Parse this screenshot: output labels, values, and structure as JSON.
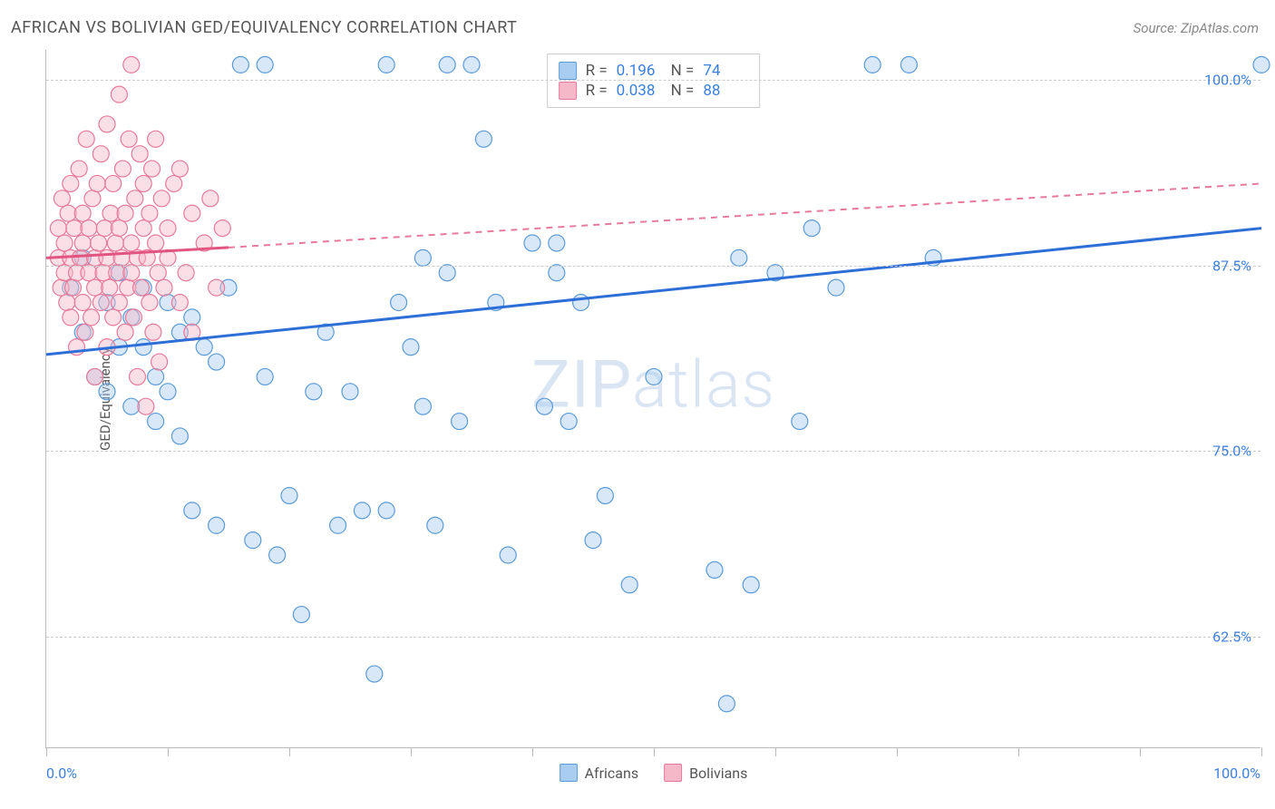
{
  "title": "AFRICAN VS BOLIVIAN GED/EQUIVALENCY CORRELATION CHART",
  "source": "Source: ZipAtlas.com",
  "ylabel": "GED/Equivalency",
  "watermark_zip": "ZIP",
  "watermark_atlas": "atlas",
  "chart": {
    "type": "scatter",
    "xlim": [
      0,
      100
    ],
    "ylim": [
      55,
      102
    ],
    "background_color": "#ffffff",
    "grid_color": "#cccccc",
    "grid_dash": "4,4",
    "border_color": "#bbbbbb",
    "ytick_values": [
      62.5,
      75.0,
      87.5,
      100.0
    ],
    "ytick_labels": [
      "62.5%",
      "75.0%",
      "87.5%",
      "100.0%"
    ],
    "ytick_color": "#3b7fdd",
    "ytick_fontsize": 16,
    "xtick_positions": [
      0,
      10,
      20,
      30,
      40,
      50,
      60,
      70,
      80,
      90,
      100
    ],
    "xaxis_left_label": "0.0%",
    "xaxis_right_label": "100.0%",
    "marker_radius": 9,
    "marker_opacity": 0.45,
    "line_width_solid": 3,
    "line_width_dash": 2,
    "series": [
      {
        "name": "Africans",
        "fill_color": "#a8cdf0",
        "stroke_color": "#5a9bd8",
        "R": "0.196",
        "N": "74",
        "trend_solid": {
          "x1": 0,
          "y1": 81.5,
          "x2": 100,
          "y2": 90.0,
          "color": "#2d6fd6"
        },
        "points": [
          [
            2,
            86
          ],
          [
            3,
            83
          ],
          [
            3,
            88
          ],
          [
            4,
            80
          ],
          [
            5,
            85
          ],
          [
            5,
            79
          ],
          [
            6,
            87
          ],
          [
            6,
            82
          ],
          [
            7,
            84
          ],
          [
            7,
            78
          ],
          [
            8,
            86
          ],
          [
            8,
            82
          ],
          [
            9,
            80
          ],
          [
            9,
            77
          ],
          [
            10,
            85
          ],
          [
            10,
            79
          ],
          [
            11,
            83
          ],
          [
            11,
            76
          ],
          [
            12,
            84
          ],
          [
            12,
            71
          ],
          [
            13,
            82
          ],
          [
            14,
            81
          ],
          [
            14,
            70
          ],
          [
            15,
            86
          ],
          [
            16,
            101
          ],
          [
            17,
            69
          ],
          [
            18,
            101
          ],
          [
            18,
            80
          ],
          [
            19,
            68
          ],
          [
            20,
            72
          ],
          [
            21,
            64
          ],
          [
            22,
            79
          ],
          [
            23,
            83
          ],
          [
            24,
            70
          ],
          [
            25,
            79
          ],
          [
            26,
            71
          ],
          [
            27,
            60
          ],
          [
            28,
            101
          ],
          [
            28,
            71
          ],
          [
            29,
            85
          ],
          [
            30,
            82
          ],
          [
            31,
            88
          ],
          [
            31,
            78
          ],
          [
            32,
            70
          ],
          [
            33,
            101
          ],
          [
            33,
            87
          ],
          [
            34,
            77
          ],
          [
            35,
            101
          ],
          [
            36,
            96
          ],
          [
            37,
            85
          ],
          [
            38,
            68
          ],
          [
            40,
            89
          ],
          [
            41,
            78
          ],
          [
            42,
            87
          ],
          [
            42,
            89
          ],
          [
            43,
            77
          ],
          [
            44,
            85
          ],
          [
            45,
            69
          ],
          [
            46,
            72
          ],
          [
            48,
            66
          ],
          [
            50,
            80
          ],
          [
            53,
            101
          ],
          [
            55,
            67
          ],
          [
            56,
            58
          ],
          [
            57,
            88
          ],
          [
            58,
            66
          ],
          [
            60,
            87
          ],
          [
            62,
            77
          ],
          [
            63,
            90
          ],
          [
            65,
            86
          ],
          [
            68,
            101
          ],
          [
            71,
            101
          ],
          [
            73,
            88
          ],
          [
            100,
            101
          ]
        ]
      },
      {
        "name": "Bolivians",
        "fill_color": "#f5b8c8",
        "stroke_color": "#e77a9a",
        "R": "0.038",
        "N": "88",
        "trend_solid": {
          "x1": 0,
          "y1": 88.0,
          "x2": 15,
          "y2": 88.7,
          "color": "#e25580"
        },
        "trend_dash": {
          "x1": 15,
          "y1": 88.7,
          "x2": 100,
          "y2": 93.0,
          "color": "#e77a9a"
        },
        "points": [
          [
            1,
            88
          ],
          [
            1,
            90
          ],
          [
            1.2,
            86
          ],
          [
            1.3,
            92
          ],
          [
            1.5,
            87
          ],
          [
            1.5,
            89
          ],
          [
            1.7,
            85
          ],
          [
            1.8,
            91
          ],
          [
            2,
            88
          ],
          [
            2,
            84
          ],
          [
            2,
            93
          ],
          [
            2.2,
            86
          ],
          [
            2.3,
            90
          ],
          [
            2.5,
            87
          ],
          [
            2.5,
            82
          ],
          [
            2.7,
            94
          ],
          [
            2.8,
            88
          ],
          [
            3,
            85
          ],
          [
            3,
            91
          ],
          [
            3,
            89
          ],
          [
            3.2,
            83
          ],
          [
            3.3,
            96
          ],
          [
            3.5,
            87
          ],
          [
            3.5,
            90
          ],
          [
            3.7,
            84
          ],
          [
            3.8,
            92
          ],
          [
            4,
            88
          ],
          [
            4,
            86
          ],
          [
            4,
            80
          ],
          [
            4.2,
            93
          ],
          [
            4.3,
            89
          ],
          [
            4.5,
            85
          ],
          [
            4.5,
            95
          ],
          [
            4.7,
            87
          ],
          [
            4.8,
            90
          ],
          [
            5,
            88
          ],
          [
            5,
            82
          ],
          [
            5,
            97
          ],
          [
            5.2,
            86
          ],
          [
            5.3,
            91
          ],
          [
            5.5,
            84
          ],
          [
            5.5,
            93
          ],
          [
            5.7,
            89
          ],
          [
            5.8,
            87
          ],
          [
            6,
            99
          ],
          [
            6,
            85
          ],
          [
            6,
            90
          ],
          [
            6.2,
            88
          ],
          [
            6.3,
            94
          ],
          [
            6.5,
            83
          ],
          [
            6.5,
            91
          ],
          [
            6.7,
            86
          ],
          [
            6.8,
            96
          ],
          [
            7,
            89
          ],
          [
            7,
            87
          ],
          [
            7,
            101
          ],
          [
            7.2,
            84
          ],
          [
            7.3,
            92
          ],
          [
            7.5,
            88
          ],
          [
            7.5,
            80
          ],
          [
            7.7,
            95
          ],
          [
            7.8,
            86
          ],
          [
            8,
            90
          ],
          [
            8,
            93
          ],
          [
            8.2,
            78
          ],
          [
            8.3,
            88
          ],
          [
            8.5,
            91
          ],
          [
            8.5,
            85
          ],
          [
            8.7,
            94
          ],
          [
            8.8,
            83
          ],
          [
            9,
            89
          ],
          [
            9,
            96
          ],
          [
            9.2,
            87
          ],
          [
            9.3,
            81
          ],
          [
            9.5,
            92
          ],
          [
            9.7,
            86
          ],
          [
            10,
            90
          ],
          [
            10,
            88
          ],
          [
            10.5,
            93
          ],
          [
            11,
            85
          ],
          [
            11,
            94
          ],
          [
            11.5,
            87
          ],
          [
            12,
            91
          ],
          [
            12,
            83
          ],
          [
            13,
            89
          ],
          [
            13.5,
            92
          ],
          [
            14,
            86
          ],
          [
            14.5,
            90
          ]
        ]
      }
    ],
    "legend": {
      "items": [
        {
          "label": "Africans",
          "fill": "#a8cdf0",
          "stroke": "#5a9bd8"
        },
        {
          "label": "Bolivians",
          "fill": "#f5b8c8",
          "stroke": "#e77a9a"
        }
      ]
    },
    "stats_box": {
      "rows": [
        {
          "swatch_fill": "#a8cdf0",
          "swatch_stroke": "#5a9bd8",
          "r_label": "R =",
          "r_val": "0.196",
          "n_label": "N =",
          "n_val": "74"
        },
        {
          "swatch_fill": "#f5b8c8",
          "swatch_stroke": "#e77a9a",
          "r_label": "R =",
          "r_val": "0.038",
          "n_label": "N =",
          "n_val": "88"
        }
      ]
    }
  }
}
